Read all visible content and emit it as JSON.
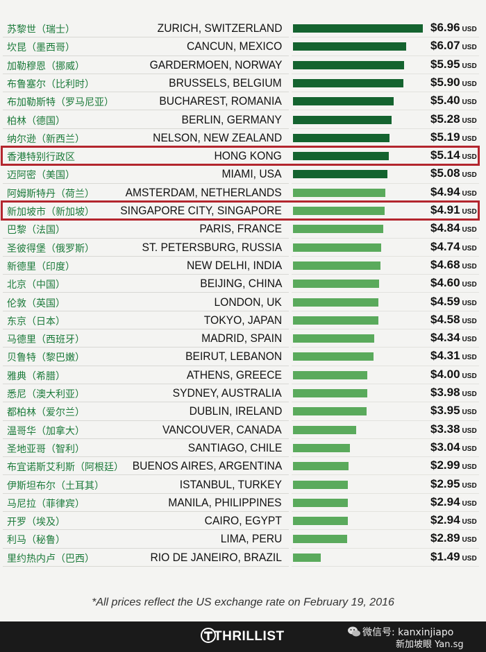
{
  "chart_data": {
    "type": "bar",
    "orientation": "horizontal",
    "colors": {
      "dark_green": "#14632f",
      "light_green": "#5aaa5c",
      "highlight": "#b3262e"
    },
    "unit": "USD",
    "rows": [
      {
        "cn": "苏黎世（瑞士）",
        "city": "ZURICH, SWITZERLAND",
        "value": 6.96,
        "price": "$6.96"
      },
      {
        "cn": "坎昆（墨西哥）",
        "city": "CANCUN, MEXICO",
        "value": 6.07,
        "price": "$6.07"
      },
      {
        "cn": "加勒穆恩（挪威）",
        "city": "GARDERMOEN, NORWAY",
        "value": 5.95,
        "price": "$5.95"
      },
      {
        "cn": "布鲁塞尔（比利时）",
        "city": "BRUSSELS, BELGIUM",
        "value": 5.9,
        "price": "$5.90"
      },
      {
        "cn": "布加勒斯特（罗马尼亚）",
        "city": "BUCHAREST, ROMANIA",
        "value": 5.4,
        "price": "$5.40"
      },
      {
        "cn": "柏林（德国）",
        "city": "BERLIN, GERMANY",
        "value": 5.28,
        "price": "$5.28"
      },
      {
        "cn": "纳尔逊（新西兰）",
        "city": "NELSON, NEW ZEALAND",
        "value": 5.19,
        "price": "$5.19"
      },
      {
        "cn": "香港特别行政区",
        "city": "HONG KONG",
        "value": 5.14,
        "price": "$5.14",
        "highlight": true
      },
      {
        "cn": "迈阿密（美国）",
        "city": "MIAMI, USA",
        "value": 5.08,
        "price": "$5.08"
      },
      {
        "cn": "阿姆斯特丹（荷兰）",
        "city": "AMSTERDAM, NETHERLANDS",
        "value": 4.94,
        "price": "$4.94"
      },
      {
        "cn": "新加坡市（新加坡）",
        "city": "SINGAPORE CITY, SINGAPORE",
        "value": 4.91,
        "price": "$4.91",
        "highlight": true
      },
      {
        "cn": "巴黎（法国）",
        "city": "PARIS, FRANCE",
        "value": 4.84,
        "price": "$4.84"
      },
      {
        "cn": "圣彼得堡（俄罗斯）",
        "city": "ST. PETERSBURG, RUSSIA",
        "value": 4.74,
        "price": "$4.74"
      },
      {
        "cn": "新德里（印度）",
        "city": "NEW DELHI, INDIA",
        "value": 4.68,
        "price": "$4.68"
      },
      {
        "cn": "北京（中国）",
        "city": "BEIJING, CHINA",
        "value": 4.6,
        "price": "$4.60"
      },
      {
        "cn": "伦敦（英国）",
        "city": "LONDON, UK",
        "value": 4.59,
        "price": "$4.59"
      },
      {
        "cn": "东京（日本）",
        "city": "TOKYO, JAPAN",
        "value": 4.58,
        "price": "$4.58"
      },
      {
        "cn": "马德里（西班牙）",
        "city": "MADRID, SPAIN",
        "value": 4.34,
        "price": "$4.34"
      },
      {
        "cn": "贝鲁特（黎巴嫩）",
        "city": "BEIRUT, LEBANON",
        "value": 4.31,
        "price": "$4.31"
      },
      {
        "cn": "雅典（希腊）",
        "city": "ATHENS, GREECE",
        "value": 4.0,
        "price": "$4.00"
      },
      {
        "cn": "悉尼（澳大利亚）",
        "city": "SYDNEY, AUSTRALIA",
        "value": 3.98,
        "price": "$3.98"
      },
      {
        "cn": "都柏林（爱尔兰）",
        "city": "DUBLIN, IRELAND",
        "value": 3.95,
        "price": "$3.95"
      },
      {
        "cn": "温哥华（加拿大）",
        "city": "VANCOUVER, CANADA",
        "value": 3.38,
        "price": "$3.38"
      },
      {
        "cn": "圣地亚哥（智利）",
        "city": "SANTIAGO, CHILE",
        "value": 3.04,
        "price": "$3.04"
      },
      {
        "cn": "布宜诺斯艾利斯（阿根廷）",
        "city": "BUENOS AIRES, ARGENTINA",
        "value": 2.99,
        "price": "$2.99"
      },
      {
        "cn": "伊斯坦布尔（土耳其）",
        "city": "ISTANBUL, TURKEY",
        "value": 2.95,
        "price": "$2.95"
      },
      {
        "cn": "马尼拉（菲律宾）",
        "city": "MANILA, PHILIPPINES",
        "value": 2.94,
        "price": "$2.94"
      },
      {
        "cn": "开罗（埃及）",
        "city": "CAIRO, EGYPT",
        "value": 2.94,
        "price": "$2.94"
      },
      {
        "cn": "利马（秘鲁）",
        "city": "LIMA, PERU",
        "value": 2.89,
        "price": "$2.89"
      },
      {
        "cn": "里约热内卢（巴西）",
        "city": "RIO DE JANEIRO, BRAZIL",
        "value": 1.49,
        "price": "$1.49"
      }
    ]
  },
  "labels": {
    "currency_suffix": "USD"
  },
  "footnote": "*All prices reflect the US exchange rate on February 19, 2016",
  "footer": {
    "brand": "THRILLIST",
    "brand_icon": "thrillist-t-logo-icon",
    "wechat_icon": "wechat-icon",
    "wechat_line1": "微信号: kanxinjiapo",
    "wechat_line2": "新加坡眼 Yan.sg"
  }
}
